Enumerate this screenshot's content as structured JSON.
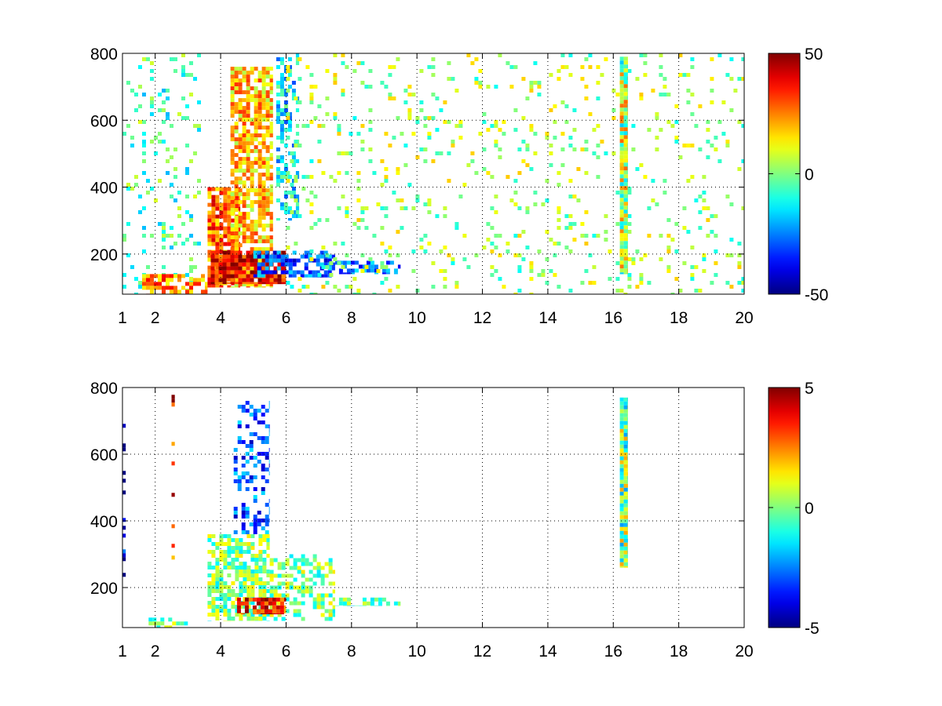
{
  "chart_data": [
    {
      "type": "heatmap",
      "title": "",
      "xlabel": "",
      "ylabel": "",
      "xlim": [
        1,
        20
      ],
      "ylim": [
        80,
        800
      ],
      "x_ticks": [
        1,
        2,
        4,
        6,
        8,
        10,
        12,
        14,
        16,
        18,
        20
      ],
      "y_ticks": [
        200,
        400,
        600,
        800
      ],
      "grid": true,
      "colormap": "jet",
      "colorbar": {
        "min": -50,
        "max": 50,
        "ticks": [
          -50,
          0,
          50
        ]
      },
      "regions": [
        {
          "x": [
            1.0,
            3.4
          ],
          "y": [
            80,
            800
          ],
          "value": -5,
          "density": 0.12,
          "kind": "sparse"
        },
        {
          "x": [
            1.6,
            3.6
          ],
          "y": [
            80,
            140
          ],
          "value": 25,
          "density": 0.6,
          "kind": "cluster"
        },
        {
          "x": [
            3.6,
            4.6
          ],
          "y": [
            100,
            400
          ],
          "value": 28,
          "density": 0.85,
          "kind": "cluster"
        },
        {
          "x": [
            4.3,
            5.6
          ],
          "y": [
            100,
            760
          ],
          "value": 18,
          "density": 0.75,
          "kind": "cluster"
        },
        {
          "x": [
            3.7,
            6.0
          ],
          "y": [
            110,
            210
          ],
          "value": 38,
          "density": 0.9,
          "kind": "cluster"
        },
        {
          "x": [
            5.0,
            7.5
          ],
          "y": [
            130,
            210
          ],
          "value": -30,
          "density": 0.6,
          "kind": "cluster"
        },
        {
          "x": [
            5.7,
            6.4
          ],
          "y": [
            300,
            800
          ],
          "value": -15,
          "density": 0.4,
          "kind": "cluster"
        },
        {
          "x": [
            7.5,
            9.5
          ],
          "y": [
            140,
            180
          ],
          "value": -28,
          "density": 0.5,
          "kind": "cluster"
        },
        {
          "x": [
            6.0,
            20.0
          ],
          "y": [
            80,
            800
          ],
          "value": 3,
          "density": 0.09,
          "kind": "sparse"
        },
        {
          "x": [
            16.2,
            16.45
          ],
          "y": [
            140,
            790
          ],
          "value": 5,
          "density": 1.0,
          "kind": "column"
        }
      ]
    },
    {
      "type": "heatmap",
      "title": "",
      "xlabel": "",
      "ylabel": "",
      "xlim": [
        1,
        20
      ],
      "ylim": [
        80,
        800
      ],
      "x_ticks": [
        1,
        2,
        4,
        6,
        8,
        10,
        12,
        14,
        16,
        18,
        20
      ],
      "y_ticks": [
        200,
        400,
        600,
        800
      ],
      "grid": true,
      "colormap": "jet",
      "colorbar": {
        "min": -5,
        "max": 5,
        "ticks": [
          -5,
          0,
          5
        ]
      },
      "regions": [
        {
          "x": [
            3.6,
            5.5
          ],
          "y": [
            100,
            360
          ],
          "value": 0,
          "density": 0.7,
          "kind": "cluster"
        },
        {
          "x": [
            4.4,
            5.5
          ],
          "y": [
            360,
            760
          ],
          "value": -3,
          "density": 0.35,
          "kind": "cluster"
        },
        {
          "x": [
            5.5,
            7.5
          ],
          "y": [
            100,
            300
          ],
          "value": 0,
          "density": 0.45,
          "kind": "cluster"
        },
        {
          "x": [
            4.5,
            6.0
          ],
          "y": [
            120,
            170
          ],
          "value": 3.5,
          "density": 0.7,
          "kind": "cluster"
        },
        {
          "x": [
            1.8,
            3.0
          ],
          "y": [
            80,
            110
          ],
          "value": 0,
          "density": 0.5,
          "kind": "cluster"
        },
        {
          "x": [
            7.5,
            9.5
          ],
          "y": [
            145,
            170
          ],
          "value": -0.5,
          "density": 0.5,
          "kind": "cluster"
        },
        {
          "x": [
            16.2,
            16.45
          ],
          "y": [
            260,
            770
          ],
          "value": 0,
          "density": 1.0,
          "kind": "column"
        },
        {
          "x": [
            1.0,
            1.1
          ],
          "y": [
            200,
            750
          ],
          "value": -4,
          "density": 0.3,
          "kind": "column"
        },
        {
          "x": [
            2.5,
            2.6
          ],
          "y": [
            230,
            790
          ],
          "value": 4,
          "density": 0.3,
          "kind": "column"
        }
      ]
    }
  ]
}
